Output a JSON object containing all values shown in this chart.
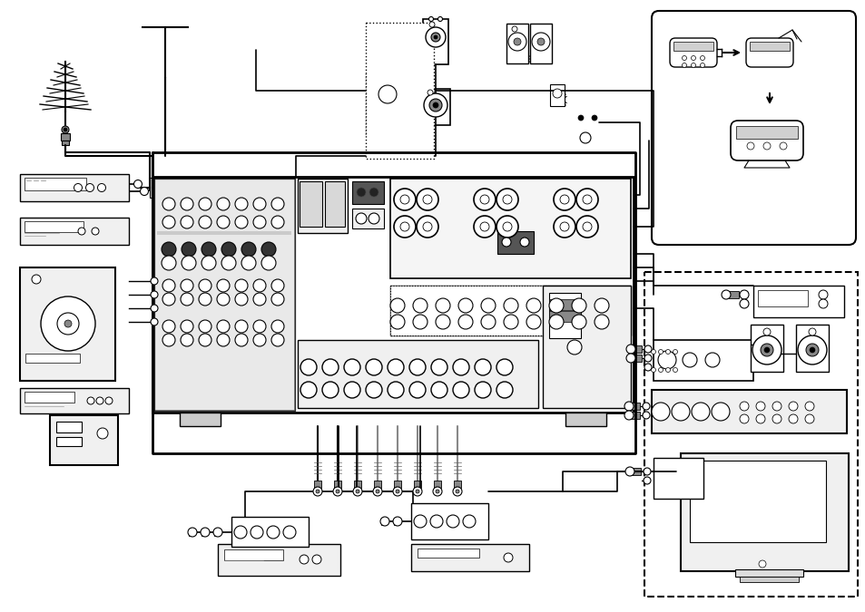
{
  "bg_color": "#ffffff",
  "lc": "#000000",
  "fig_width": 9.54,
  "fig_height": 6.75
}
